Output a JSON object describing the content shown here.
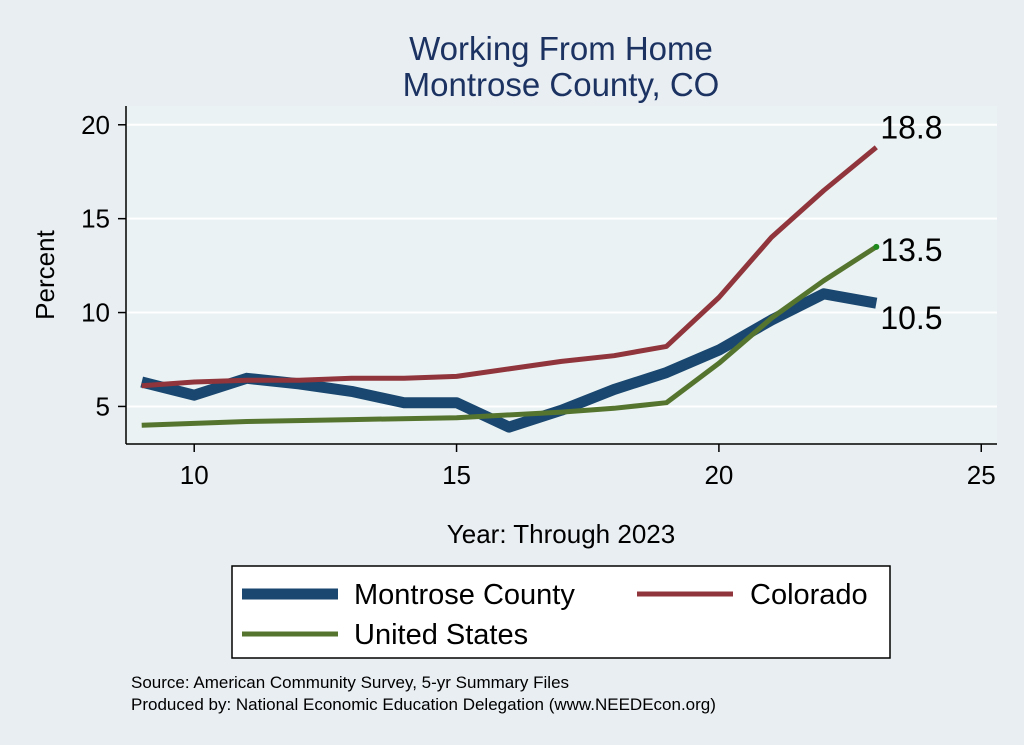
{
  "chart_data": {
    "type": "line",
    "title": [
      "Working From Home",
      "Montrose County, CO"
    ],
    "xlabel": "Year: Through 2023",
    "ylabel": "Percent",
    "xlim": [
      8.7,
      25.3
    ],
    "ylim": [
      3.0,
      21.0
    ],
    "x_ticks": [
      10,
      15,
      20,
      25
    ],
    "y_ticks": [
      5,
      10,
      15,
      20
    ],
    "grid": "horizontal",
    "legend_position": "bottom",
    "series": [
      {
        "name": "Montrose County",
        "color": "#1a476f",
        "x": [
          9,
          10,
          11,
          12,
          13,
          14,
          15,
          16,
          17,
          18,
          19,
          20,
          21,
          22,
          23
        ],
        "values": [
          6.3,
          5.6,
          6.5,
          6.2,
          5.8,
          5.2,
          5.2,
          3.9,
          4.8,
          5.9,
          6.8,
          8.0,
          9.6,
          11.0,
          10.5
        ],
        "end_label": "10.5"
      },
      {
        "name": "Colorado",
        "color": "#90353b",
        "x": [
          9,
          10,
          11,
          12,
          13,
          14,
          15,
          16,
          17,
          18,
          19,
          20,
          21,
          22,
          23
        ],
        "values": [
          6.1,
          6.3,
          6.4,
          6.4,
          6.5,
          6.5,
          6.6,
          7.0,
          7.4,
          7.7,
          8.2,
          10.8,
          14.0,
          16.5,
          18.8
        ],
        "end_label": "18.8"
      },
      {
        "name": "United States",
        "color": "#55752f",
        "x": [
          9,
          11,
          13,
          15,
          17,
          18,
          19,
          20,
          21,
          22,
          23
        ],
        "values": [
          4.0,
          4.2,
          4.3,
          4.4,
          4.7,
          4.9,
          5.2,
          7.3,
          9.7,
          11.7,
          13.5
        ],
        "end_label": "13.5"
      }
    ],
    "notes": [
      "Source: American Community Survey, 5-yr Summary Files",
      "Produced by: National Economic Education Delegation (www.NEEDEcon.org)"
    ]
  }
}
